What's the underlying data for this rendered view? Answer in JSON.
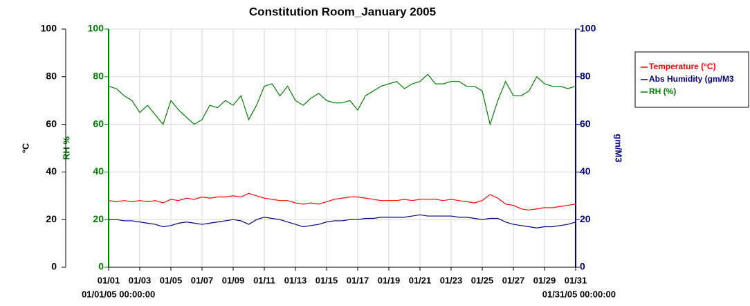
{
  "chart_data": {
    "type": "line",
    "title": "Constitution Room_January 2005",
    "y_label": "°C",
    "y3_label": "RH %",
    "y2_label": "gm/M3",
    "x_start_label": "01/01/05 00:00:00",
    "x_end_label": "01/31/05 00:00:00",
    "x": [
      1,
      1.5,
      2,
      2.5,
      3,
      3.5,
      4,
      4.5,
      5,
      5.5,
      6,
      6.5,
      7,
      7.5,
      8,
      8.5,
      9,
      9.5,
      10,
      10.5,
      11,
      11.5,
      12,
      12.5,
      13,
      13.5,
      14,
      14.5,
      15,
      15.5,
      16,
      16.5,
      17,
      17.5,
      18,
      18.5,
      19,
      19.5,
      20,
      20.5,
      21,
      21.5,
      22,
      22.5,
      23,
      23.5,
      24,
      24.5,
      25,
      25.5,
      26,
      26.5,
      27,
      27.5,
      28,
      28.5,
      29,
      29.5,
      30,
      30.5,
      31
    ],
    "xlim": [
      1,
      31
    ],
    "xticks": [
      {
        "value": 1,
        "label": "01/01"
      },
      {
        "value": 3,
        "label": "01/03"
      },
      {
        "value": 5,
        "label": "01/05"
      },
      {
        "value": 7,
        "label": "01/07"
      },
      {
        "value": 9,
        "label": "01/09"
      },
      {
        "value": 11,
        "label": "01/11"
      },
      {
        "value": 13,
        "label": "01/13"
      },
      {
        "value": 15,
        "label": "01/15"
      },
      {
        "value": 17,
        "label": "01/17"
      },
      {
        "value": 19,
        "label": "01/19"
      },
      {
        "value": 21,
        "label": "01/21"
      },
      {
        "value": 23,
        "label": "01/23"
      },
      {
        "value": 25,
        "label": "01/25"
      },
      {
        "value": 27,
        "label": "01/27"
      },
      {
        "value": 29,
        "label": "01/29"
      },
      {
        "value": 31,
        "label": "01/31"
      }
    ],
    "ylim": [
      0,
      100
    ],
    "yticks": [
      0,
      20,
      40,
      60,
      80,
      100
    ],
    "y2lim": [
      0,
      100
    ],
    "y2ticks": [
      0,
      20,
      40,
      60,
      80,
      100
    ],
    "y3lim": [
      0,
      100
    ],
    "y3ticks": [
      0,
      20,
      40,
      60,
      80,
      100
    ],
    "grid": true,
    "legend": "right",
    "series": [
      {
        "name": "Temperature (°C)",
        "color": "#ff0000",
        "axis": "y",
        "values": [
          28,
          27.5,
          28,
          27.5,
          28,
          27.5,
          28,
          27,
          28.5,
          28,
          29,
          28.5,
          29.5,
          29,
          29.5,
          29.5,
          30,
          29.5,
          31,
          30,
          29,
          28.5,
          28,
          28,
          27,
          26.5,
          27,
          26.5,
          27.5,
          28.5,
          29,
          29.5,
          29.5,
          29,
          28.5,
          28,
          28,
          28,
          28.5,
          28,
          28.5,
          28.5,
          28.5,
          28,
          28.5,
          28,
          27.5,
          27,
          28,
          30.5,
          29,
          26.5,
          26,
          24.5,
          24,
          24.5,
          25,
          25,
          25.5,
          26,
          26.5
        ]
      },
      {
        "name": "Abs Humidity (gm/M3",
        "color": "#000080",
        "axis": "y2",
        "values": [
          20,
          20,
          19.5,
          19.5,
          19,
          18.5,
          18,
          17,
          17.5,
          18.5,
          19,
          18.5,
          18,
          18.5,
          19,
          19.5,
          20,
          19.5,
          18,
          20,
          21,
          20.5,
          20,
          19,
          18,
          17,
          17.5,
          18,
          19,
          19.5,
          19.5,
          20,
          20,
          20.5,
          20.5,
          21,
          21,
          21,
          21,
          21.5,
          22,
          21.5,
          21.5,
          21.5,
          21.5,
          21,
          21,
          20.5,
          20,
          20.5,
          20.5,
          19,
          18,
          17.5,
          17,
          16.5,
          17,
          17,
          17.5,
          18,
          19
        ]
      },
      {
        "name": "RH (%)",
        "color": "#008000",
        "axis": "y3",
        "values": [
          76,
          75,
          72,
          70,
          65,
          68,
          64,
          60,
          70,
          66,
          63,
          60,
          62,
          68,
          67,
          70,
          68,
          72,
          62,
          68,
          76,
          77,
          72,
          76,
          70,
          68,
          71,
          73,
          70,
          69,
          69,
          70,
          66,
          72,
          74,
          76,
          77,
          78,
          75,
          77,
          78,
          81,
          77,
          77,
          78,
          78,
          76,
          76,
          74,
          60,
          70,
          78,
          72,
          72,
          74,
          80,
          77,
          76,
          76,
          75,
          76
        ]
      }
    ]
  }
}
